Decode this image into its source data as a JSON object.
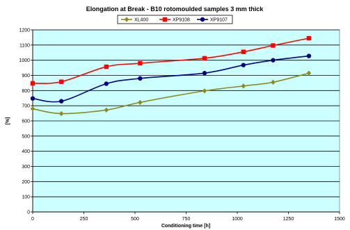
{
  "chart_data": {
    "type": "line",
    "title": "Elongation at Break - B10 rotomoulded samples 3 mm thick",
    "xlabel": "Conditioning time [h]",
    "ylabel": "[%]",
    "xlim": [
      0,
      1500
    ],
    "ylim": [
      0,
      1200
    ],
    "xticks": [
      0,
      250,
      500,
      750,
      1000,
      1250,
      1500
    ],
    "yticks": [
      0,
      100,
      200,
      300,
      400,
      500,
      600,
      700,
      800,
      900,
      1000,
      1100,
      1200
    ],
    "grid": "horizontal",
    "legend_position": "top",
    "plot_background": "#ccffff",
    "series": [
      {
        "name": "XL400",
        "color": "#8a8a1e",
        "marker": "diamond",
        "x": [
          0,
          140,
          360,
          525,
          840,
          1030,
          1175,
          1350
        ],
        "y": [
          680,
          648,
          672,
          722,
          798,
          830,
          855,
          915
        ]
      },
      {
        "name": "XP9108",
        "color": "#ff0000",
        "marker": "square",
        "x": [
          0,
          140,
          360,
          525,
          840,
          1030,
          1175,
          1350
        ],
        "y": [
          848,
          858,
          957,
          980,
          1013,
          1055,
          1097,
          1145
        ]
      },
      {
        "name": "XP9107",
        "color": "#000080",
        "marker": "circle",
        "x": [
          0,
          140,
          360,
          525,
          840,
          1030,
          1175,
          1350
        ],
        "y": [
          748,
          730,
          845,
          880,
          915,
          968,
          1000,
          1028
        ]
      }
    ]
  }
}
